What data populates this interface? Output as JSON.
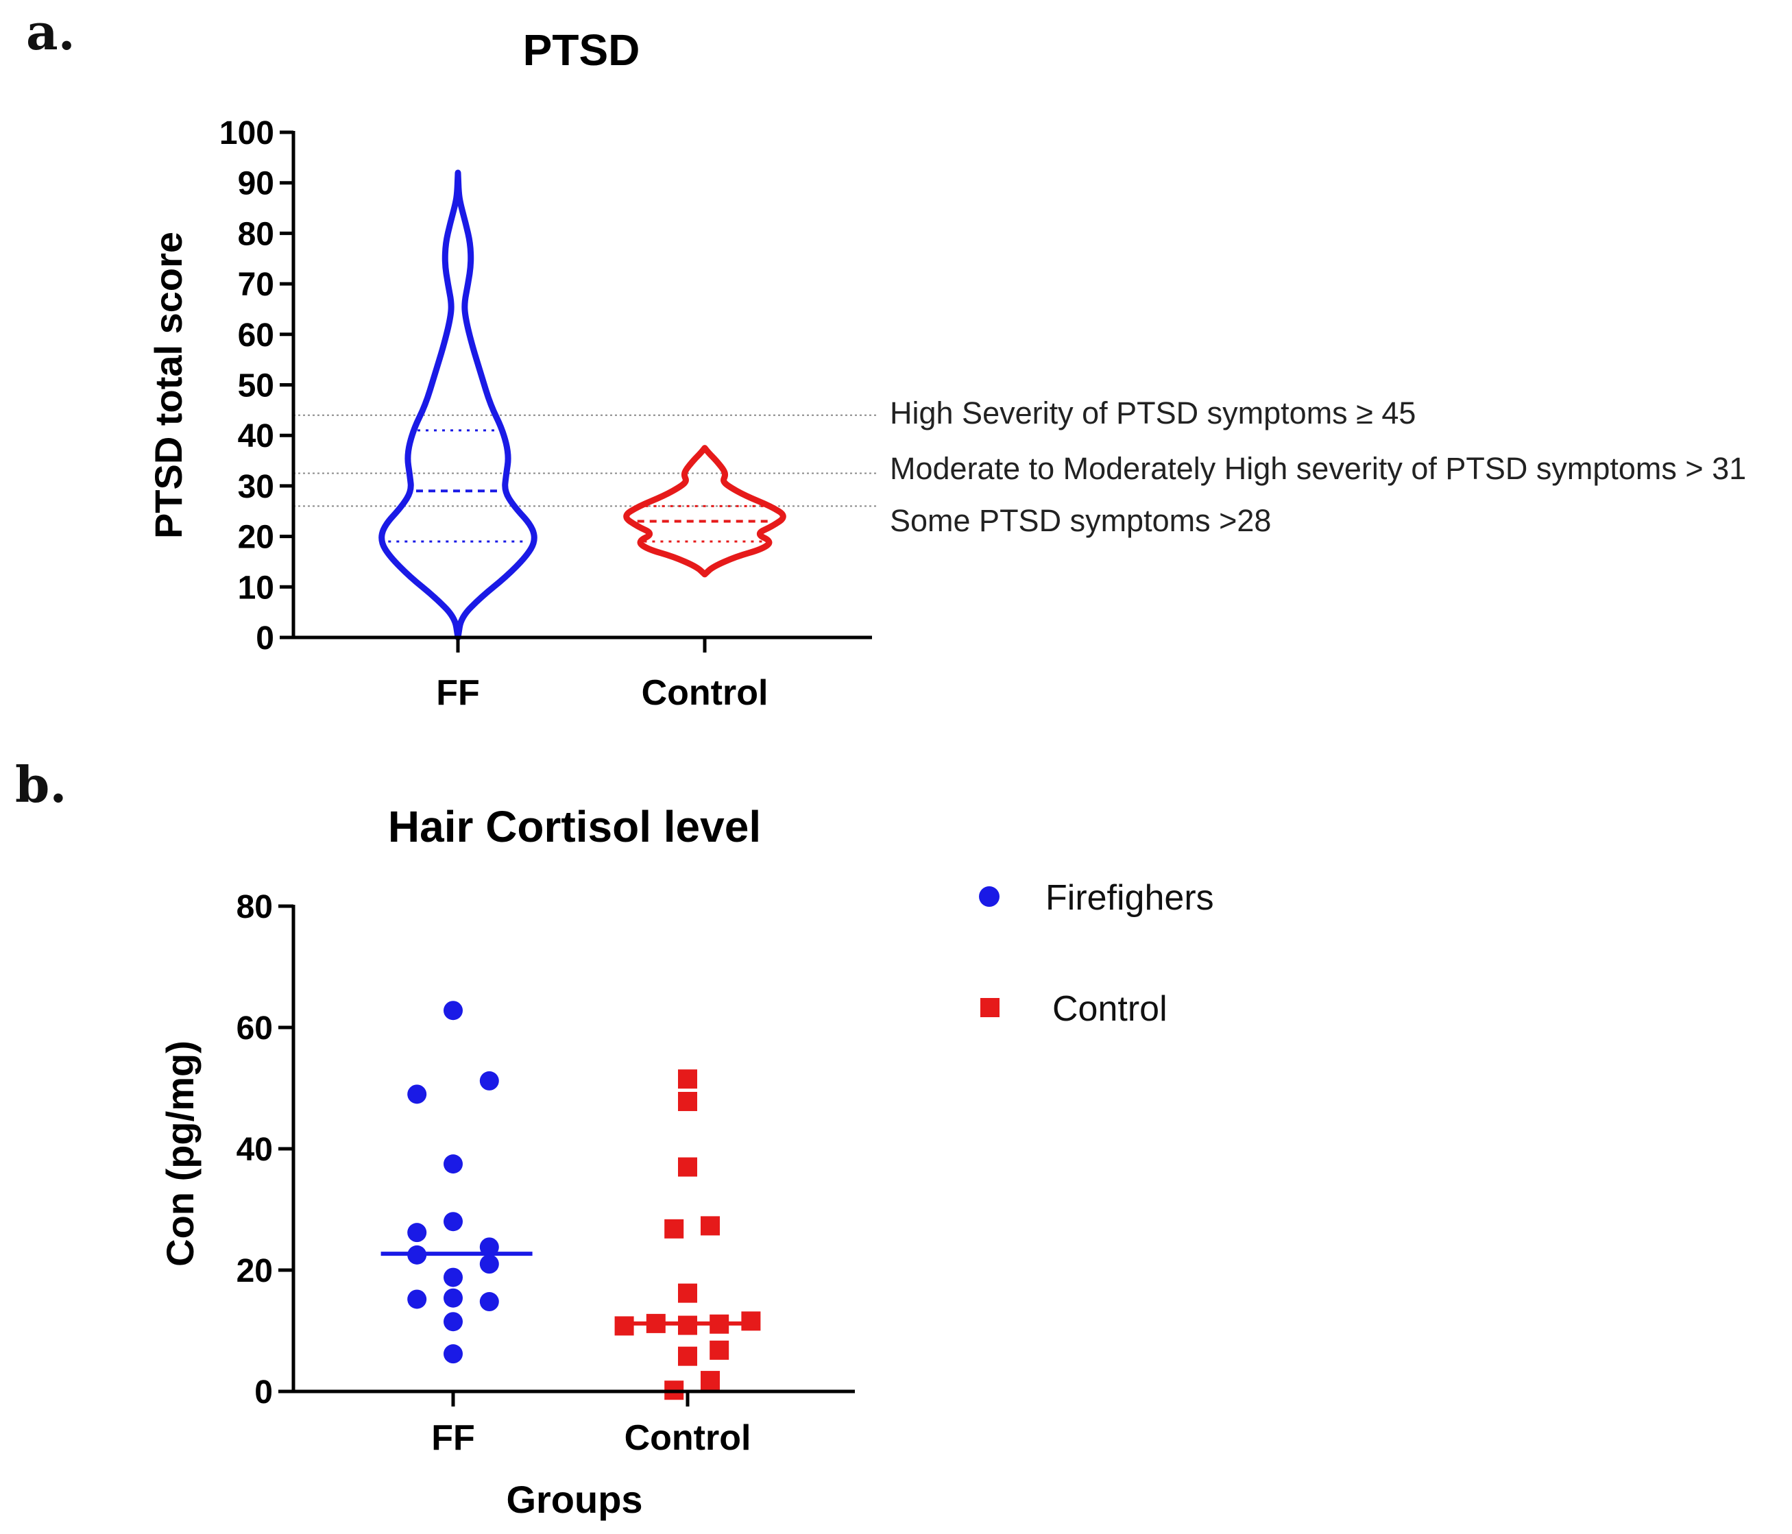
{
  "panels": {
    "a_letter": "a.",
    "b_letter": "b."
  },
  "chart_data": [
    {
      "type": "violin",
      "title": "PTSD",
      "ylabel": "PTSD total score",
      "xlabel": "",
      "ylim": [
        0,
        100
      ],
      "yticks": [
        0,
        10,
        20,
        30,
        40,
        50,
        60,
        70,
        80,
        90,
        100
      ],
      "categories": [
        "FF",
        "Control"
      ],
      "colors": {
        "FF": "#1a1ae6",
        "Control": "#e61a1a"
      },
      "violins": [
        {
          "name": "FF",
          "color": "#1a1ae6",
          "profile": [
            [
              0,
              0.0
            ],
            [
              4,
              0.04
            ],
            [
              8,
              0.3
            ],
            [
              12,
              0.62
            ],
            [
              16,
              0.88
            ],
            [
              19,
              1.0
            ],
            [
              22,
              0.96
            ],
            [
              26,
              0.72
            ],
            [
              29,
              0.6
            ],
            [
              32,
              0.62
            ],
            [
              36,
              0.66
            ],
            [
              41,
              0.58
            ],
            [
              46,
              0.42
            ],
            [
              52,
              0.3
            ],
            [
              58,
              0.18
            ],
            [
              63,
              0.1
            ],
            [
              66,
              0.08
            ],
            [
              70,
              0.13
            ],
            [
              74,
              0.17
            ],
            [
              78,
              0.16
            ],
            [
              82,
              0.1
            ],
            [
              86,
              0.03
            ],
            [
              88,
              0.01
            ],
            [
              92,
              0.0
            ]
          ],
          "median": 29,
          "q1": 19,
          "q3": 41
        },
        {
          "name": "Control",
          "color": "#e61a1a",
          "profile": [
            [
              12.5,
              0.0
            ],
            [
              14,
              0.1
            ],
            [
              16,
              0.38
            ],
            [
              17.5,
              0.7
            ],
            [
              19,
              0.82
            ],
            [
              20.5,
              0.62
            ],
            [
              22,
              0.82
            ],
            [
              24,
              1.0
            ],
            [
              26,
              0.8
            ],
            [
              28,
              0.5
            ],
            [
              30,
              0.28
            ],
            [
              31,
              0.22
            ],
            [
              32,
              0.25
            ],
            [
              33,
              0.24
            ],
            [
              35,
              0.14
            ],
            [
              36.5,
              0.05
            ],
            [
              37.5,
              0.0
            ]
          ],
          "median": 23,
          "q1": 19,
          "q3": 26
        }
      ],
      "threshold_lines": [
        {
          "value": 44,
          "label": "High Severity of PTSD symptoms ≥ 45"
        },
        {
          "value": 32.5,
          "label": "Moderate to Moderately High severity of PTSD symptoms > 31"
        },
        {
          "value": 26,
          "label": "Some PTSD symptoms >28"
        }
      ]
    },
    {
      "type": "scatter",
      "title": "Hair Cortisol level",
      "ylabel": "Con (pg/mg)",
      "xlabel": "Groups",
      "ylim": [
        0,
        80
      ],
      "yticks": [
        0,
        20,
        40,
        60,
        80
      ],
      "categories": [
        "FF",
        "Control"
      ],
      "legend": [
        {
          "label": "Firefighers",
          "marker": "circle",
          "color": "#1a1ae6"
        },
        {
          "label": "Control",
          "marker": "square",
          "color": "#e61a1a"
        }
      ],
      "series": [
        {
          "name": "FF",
          "marker": "circle",
          "color": "#1a1ae6",
          "median": 22.7,
          "points": [
            [
              0,
              62.8
            ],
            [
              -0.16,
              49.0
            ],
            [
              0.16,
              51.2
            ],
            [
              0,
              37.5
            ],
            [
              0,
              28.0
            ],
            [
              -0.16,
              26.2
            ],
            [
              0.16,
              23.8
            ],
            [
              -0.16,
              22.5
            ],
            [
              0.16,
              21.0
            ],
            [
              0,
              18.8
            ],
            [
              -0.16,
              15.2
            ],
            [
              0,
              15.4
            ],
            [
              0.16,
              14.8
            ],
            [
              0,
              11.5
            ],
            [
              0,
              6.2
            ]
          ]
        },
        {
          "name": "Control",
          "marker": "square",
          "color": "#e61a1a",
          "median": 11.2,
          "points": [
            [
              0,
              51.5
            ],
            [
              0,
              47.8
            ],
            [
              0,
              37.0
            ],
            [
              -0.06,
              26.8
            ],
            [
              0.1,
              27.3
            ],
            [
              0,
              16.2
            ],
            [
              -0.28,
              10.8
            ],
            [
              -0.14,
              11.2
            ],
            [
              0,
              10.9
            ],
            [
              0.14,
              11.1
            ],
            [
              0.28,
              11.6
            ],
            [
              0,
              5.8
            ],
            [
              0.14,
              6.8
            ],
            [
              0.1,
              1.8
            ],
            [
              -0.06,
              0.2
            ]
          ]
        }
      ]
    }
  ]
}
